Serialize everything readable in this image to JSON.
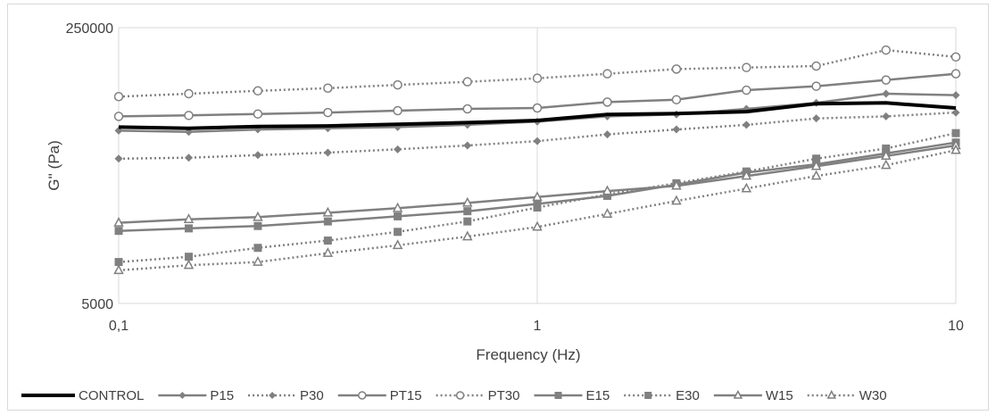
{
  "chart_data": {
    "type": "line",
    "title": "",
    "xlabel": "Frequency (Hz)",
    "ylabel": "G'' (Pa)",
    "x_scale": "log",
    "y_scale": "log",
    "xlim": [
      0.1,
      10
    ],
    "ylim": [
      5000,
      250000
    ],
    "x_ticks": [
      0.1,
      1,
      10
    ],
    "x_tick_labels": [
      "0,1",
      "1",
      "10"
    ],
    "y_ticks": [
      5000,
      250000
    ],
    "y_tick_labels": [
      "5000",
      "250000"
    ],
    "grid": "vertical at decades",
    "legend_position": "bottom",
    "x": [
      0.1,
      0.147,
      0.215,
      0.316,
      0.464,
      0.681,
      1,
      1.47,
      2.15,
      3.16,
      4.64,
      6.81,
      10
    ],
    "series": [
      {
        "name": "CONTROL",
        "color": "#000000",
        "style": "solid",
        "marker": "none",
        "values": [
          61000,
          60000,
          61500,
          62000,
          63500,
          65000,
          67000,
          73000,
          74000,
          76000,
          85000,
          86000,
          80000
        ]
      },
      {
        "name": "P15",
        "color": "#808080",
        "style": "solid",
        "marker": "diamond",
        "values": [
          58000,
          57000,
          59000,
          60000,
          61000,
          63000,
          66000,
          71000,
          73000,
          79000,
          86000,
          98000,
          96000
        ]
      },
      {
        "name": "P30",
        "color": "#808080",
        "style": "dotted",
        "marker": "diamond",
        "values": [
          39000,
          39500,
          41000,
          42500,
          44500,
          47000,
          50000,
          55000,
          59000,
          63000,
          69000,
          71000,
          75000
        ]
      },
      {
        "name": "PT15",
        "color": "#808080",
        "style": "solid",
        "marker": "circle",
        "values": [
          71000,
          72000,
          73500,
          75000,
          77000,
          79000,
          80000,
          87000,
          90000,
          103000,
          109000,
          119000,
          130000
        ]
      },
      {
        "name": "PT30",
        "color": "#808080",
        "style": "dotted",
        "marker": "circle",
        "values": [
          94000,
          98000,
          102000,
          106000,
          111000,
          116000,
          122000,
          130000,
          139000,
          142000,
          145000,
          182000,
          165000
        ]
      },
      {
        "name": "E15",
        "color": "#808080",
        "style": "solid",
        "marker": "square",
        "values": [
          14000,
          14500,
          15000,
          16000,
          17200,
          18500,
          20500,
          23000,
          27000,
          32000,
          36000,
          42000,
          49000
        ]
      },
      {
        "name": "E30",
        "color": "#808080",
        "style": "dotted",
        "marker": "square",
        "values": [
          9000,
          9700,
          11000,
          12200,
          13800,
          16000,
          19500,
          23500,
          27500,
          32500,
          39000,
          45000,
          56000
        ]
      },
      {
        "name": "W15",
        "color": "#808080",
        "style": "solid",
        "marker": "triangle",
        "values": [
          15700,
          16500,
          17000,
          18100,
          19300,
          20800,
          22600,
          24600,
          26500,
          30500,
          35000,
          40500,
          47000
        ]
      },
      {
        "name": "W30",
        "color": "#808080",
        "style": "dotted",
        "marker": "triangle",
        "values": [
          8000,
          8600,
          9000,
          10200,
          11400,
          12900,
          14800,
          17800,
          21400,
          25500,
          30500,
          35500,
          44000
        ]
      }
    ]
  }
}
